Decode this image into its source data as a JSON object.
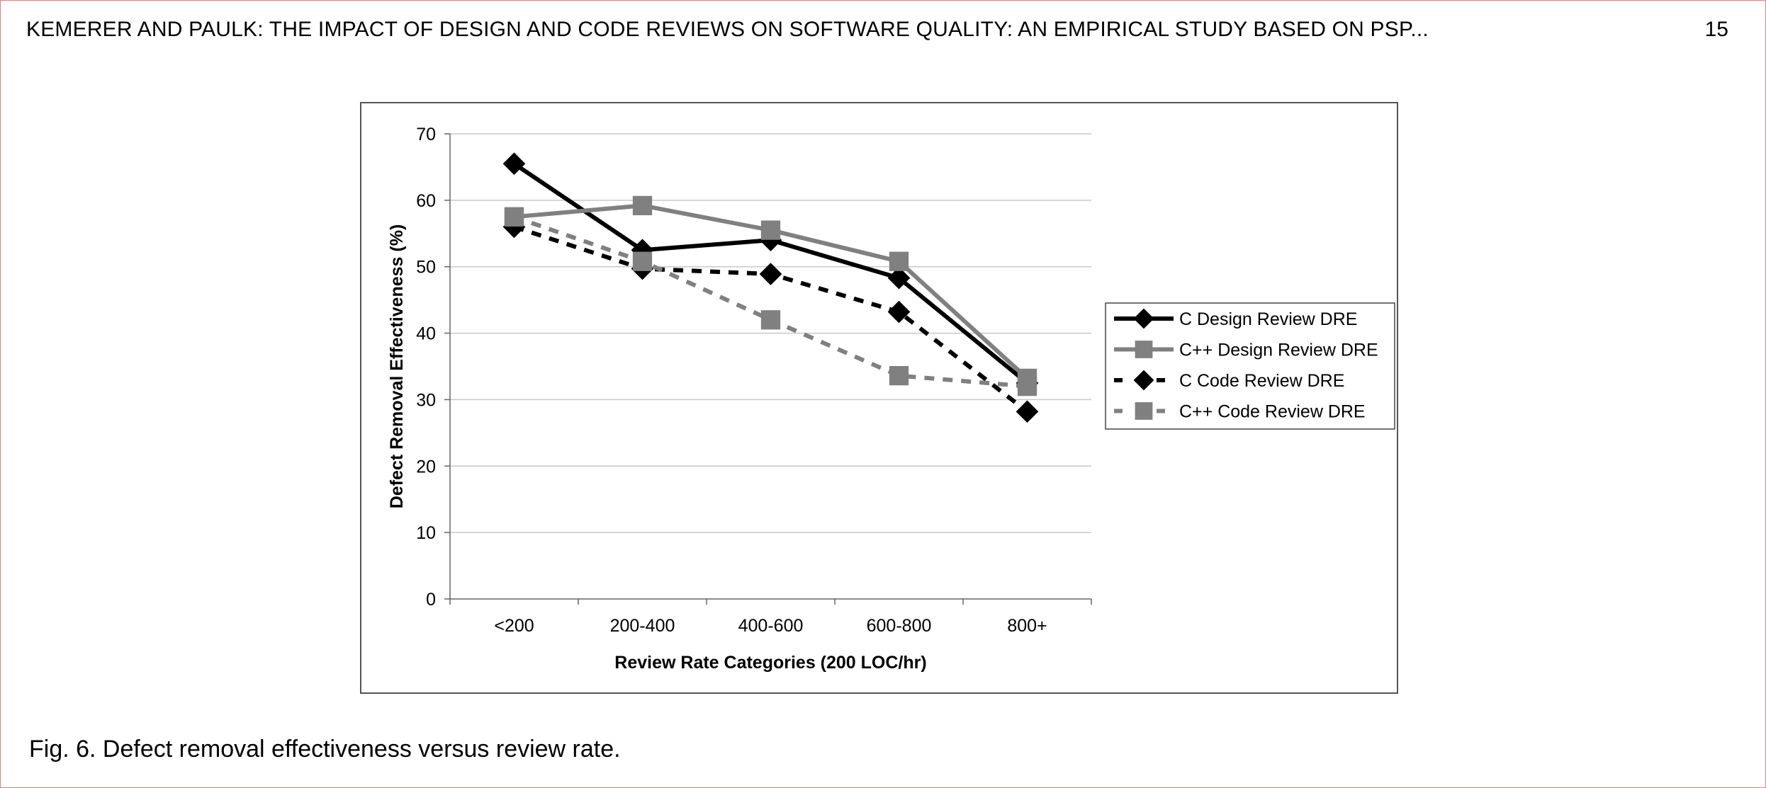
{
  "header": {
    "running_title": "KEMERER AND PAULK: THE IMPACT OF DESIGN AND CODE REVIEWS ON SOFTWARE QUALITY: AN EMPIRICAL STUDY BASED ON PSP...",
    "page_number": "15"
  },
  "figure": {
    "caption": "Fig. 6. Defect removal effectiveness versus review rate."
  },
  "chart_data": {
    "type": "line",
    "title": "",
    "xlabel": "Review Rate Categories (200 LOC/hr)",
    "ylabel": "Defect Removal Effectiveness (%)",
    "categories": [
      "<200",
      "200-400",
      "400-600",
      "600-800",
      "800+"
    ],
    "ylim": [
      0,
      70
    ],
    "yticks": [
      0,
      10,
      20,
      30,
      40,
      50,
      60,
      70
    ],
    "grid": true,
    "legend_position": "right",
    "series": [
      {
        "name": "C Design Review DRE",
        "values": [
          65.5,
          52.5,
          54,
          48.3,
          32.5
        ],
        "color": "#000000",
        "marker": "diamond",
        "dash": "solid"
      },
      {
        "name": "C++ Design Review DRE",
        "values": [
          57.5,
          59.2,
          55.5,
          50.8,
          33.2
        ],
        "color": "#808080",
        "marker": "square",
        "dash": "solid"
      },
      {
        "name": "C Code Review DRE",
        "values": [
          56,
          49.7,
          48.9,
          43.2,
          28.2
        ],
        "color": "#000000",
        "marker": "diamond",
        "dash": "dashed"
      },
      {
        "name": "C++ Code Review DRE",
        "values": [
          57.5,
          50.8,
          42,
          33.6,
          32
        ],
        "color": "#808080",
        "marker": "square",
        "dash": "dashed"
      }
    ]
  }
}
